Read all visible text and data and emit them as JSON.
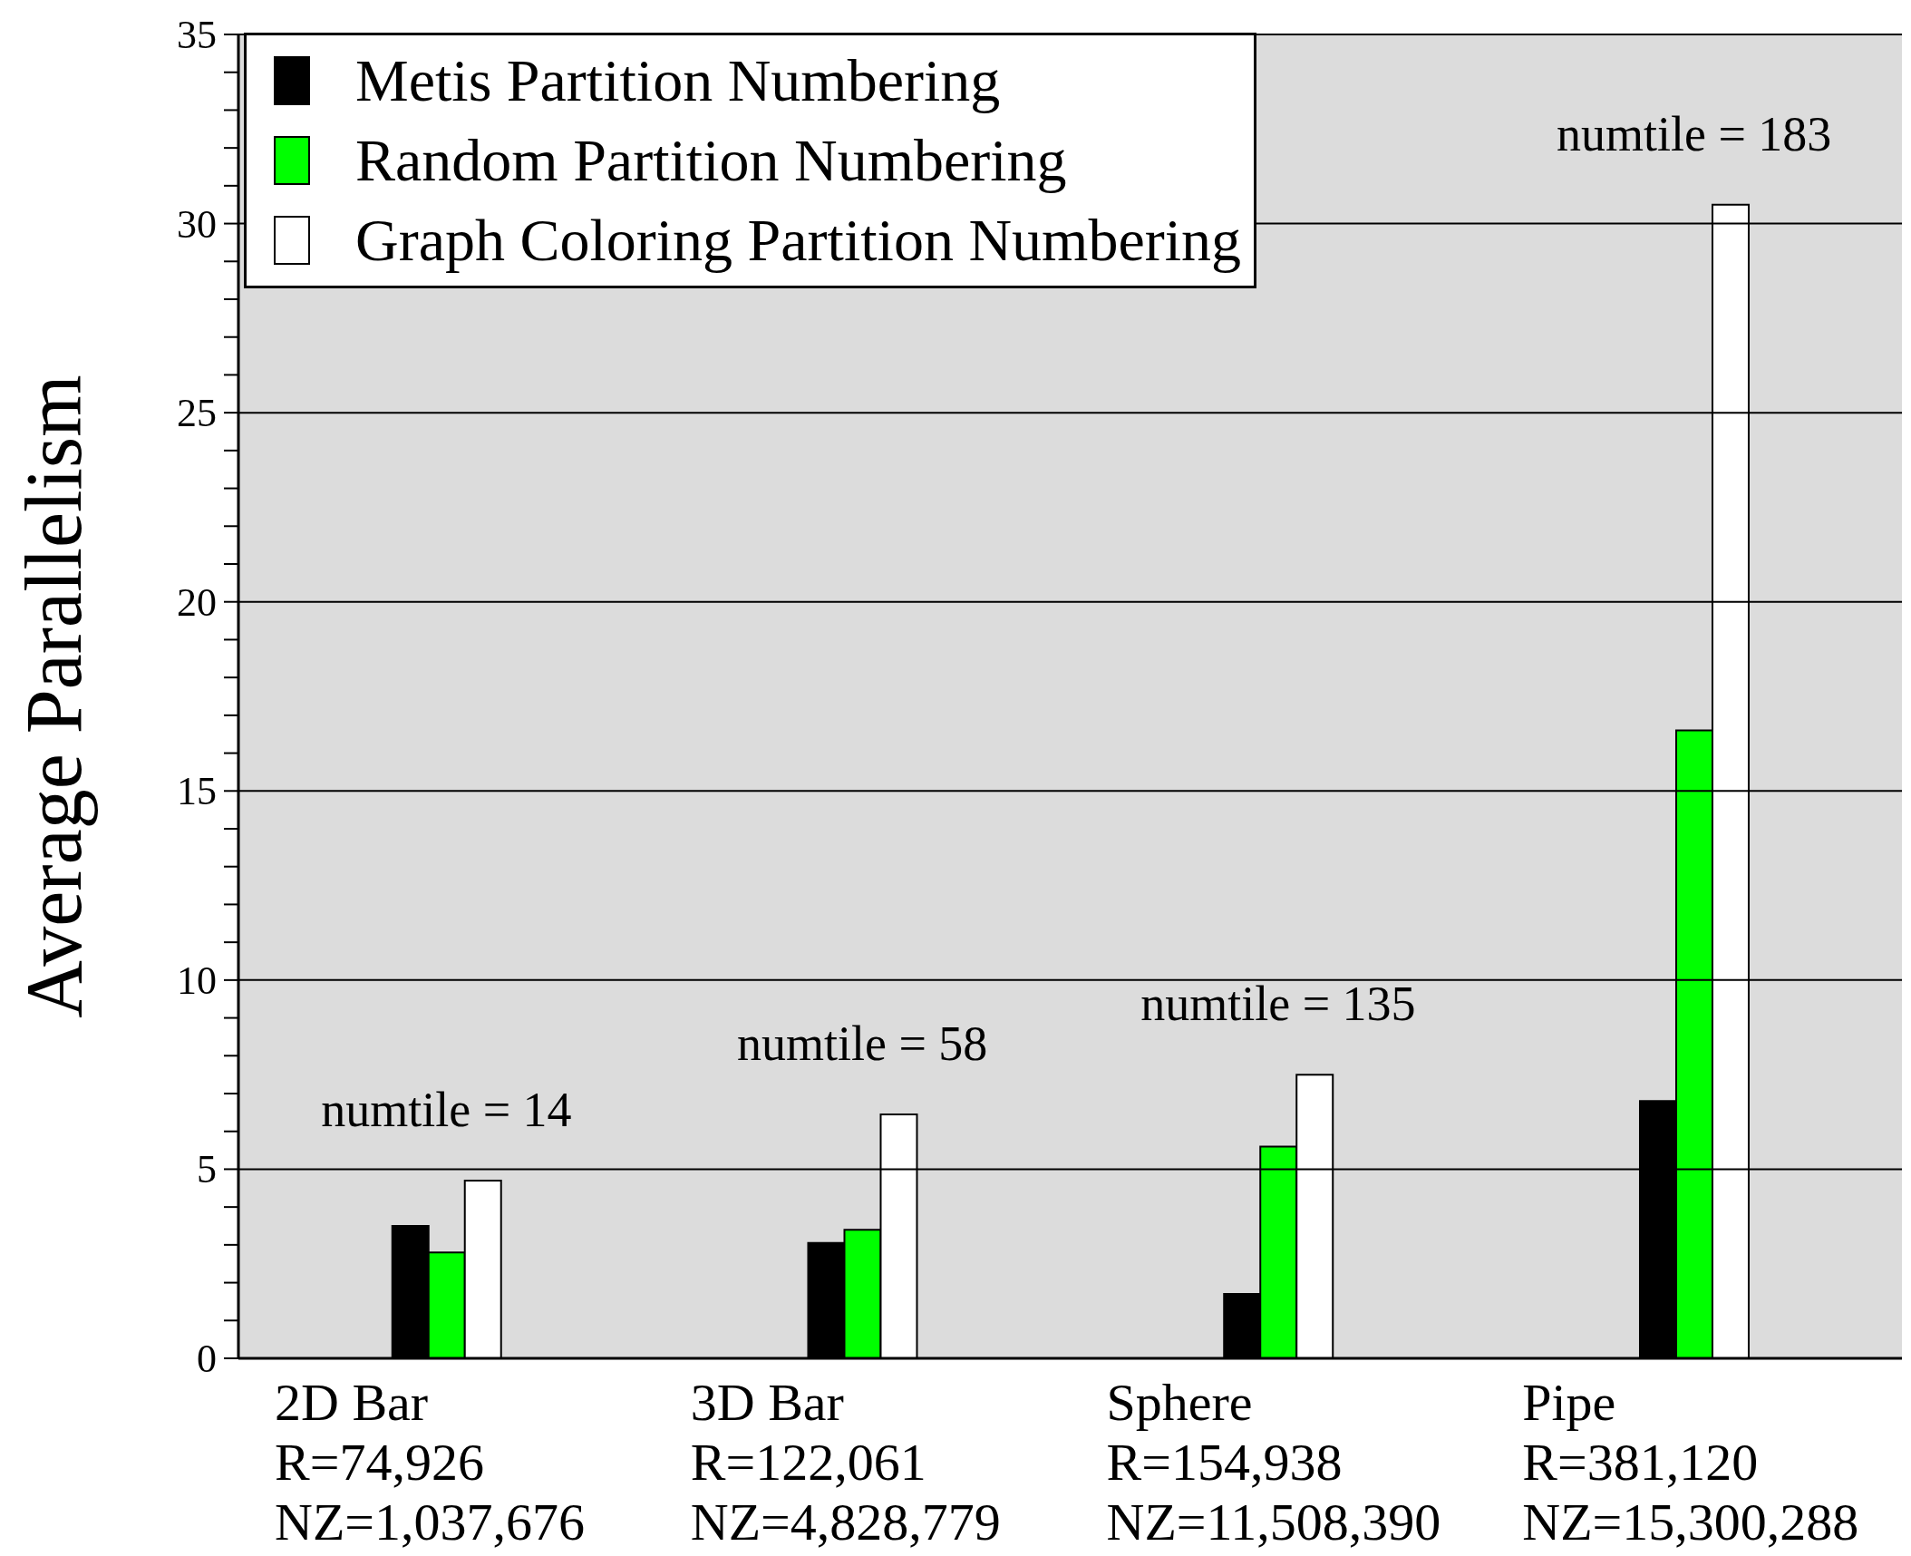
{
  "chart_data": {
    "type": "bar",
    "ylabel": "Average Parallelism",
    "categories": [
      "2D Bar\nR=74,926\nNZ=1,037,676",
      "3D Bar\nR=122,061\nNZ=4,828,779",
      "Sphere\nR=154,938\nNZ=11,508,390",
      "Pipe\nR=381,120\nNZ=15,300,288"
    ],
    "series": [
      {
        "name": "Metis Partition Numbering",
        "color": "#000000",
        "values": [
          3.5,
          3.05,
          1.7,
          6.8
        ]
      },
      {
        "name": "Random Partition Numbering",
        "color": "#00ff00",
        "values": [
          2.8,
          3.4,
          5.6,
          16.6
        ]
      },
      {
        "name": "Graph Coloring Partition Numbering",
        "color": "#ffffff",
        "values": [
          4.7,
          6.45,
          7.5,
          30.5
        ]
      }
    ],
    "ylim": [
      0,
      35
    ],
    "yticks": [
      0,
      {
        "value": 1,
        "label": null
      },
      {
        "value": 2,
        "label": null
      },
      {
        "value": 3,
        "label": null
      },
      {
        "value": 4,
        "label": null
      },
      5,
      {
        "value": 6,
        "label": null
      },
      {
        "value": 7,
        "label": null
      },
      {
        "value": 8,
        "label": null
      },
      {
        "value": 9,
        "label": null
      },
      10,
      {
        "value": 11,
        "label": null
      },
      {
        "value": 12,
        "label": null
      },
      {
        "value": 13,
        "label": null
      },
      {
        "value": 14,
        "label": null
      },
      15,
      {
        "value": 16,
        "label": null
      },
      {
        "value": 17,
        "label": null
      },
      {
        "value": 18,
        "label": null
      },
      {
        "value": 19,
        "label": null
      },
      20,
      {
        "value": 21,
        "label": null
      },
      {
        "value": 22,
        "label": null
      },
      {
        "value": 23,
        "label": null
      },
      {
        "value": 24,
        "label": null
      },
      25,
      {
        "value": 26,
        "label": null
      },
      {
        "value": 27,
        "label": null
      },
      {
        "value": 28,
        "label": null
      },
      {
        "value": 29,
        "label": null
      },
      30,
      {
        "value": 31,
        "label": null
      },
      {
        "value": 32,
        "label": null
      },
      {
        "value": 33,
        "label": null
      },
      {
        "value": 34,
        "label": null
      },
      35
    ],
    "annotations": [
      "numtile = 14",
      "numtile = 58",
      "numtile = 135",
      "numtile = 183"
    ],
    "grid": "y",
    "legend": "top left"
  }
}
